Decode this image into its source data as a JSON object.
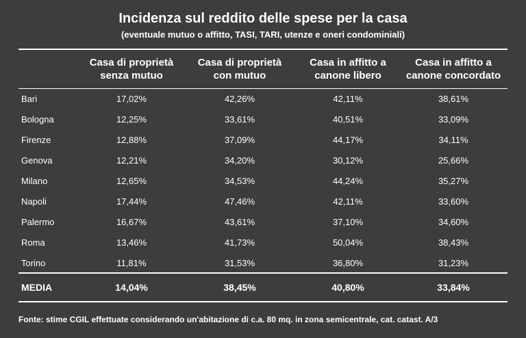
{
  "chart_data": {
    "type": "table",
    "title": "Incidenza sul reddito delle spese per la casa",
    "subtitle": "(eventuale mutuo o affitto, TASI, TARI, utenze e oneri condominiali)",
    "columns": [
      {
        "line1": "Casa di proprietà",
        "line2": "senza mutuo"
      },
      {
        "line1": "Casa di proprietà",
        "line2": "con mutuo"
      },
      {
        "line1": "Casa in affitto a",
        "line2": "canone libero"
      },
      {
        "line1": "Casa in affitto a",
        "line2": "canone concordato"
      }
    ],
    "rows": [
      {
        "city": "Bari",
        "values": [
          "17,02%",
          "42,26%",
          "42,11%",
          "38,61%"
        ]
      },
      {
        "city": "Bologna",
        "values": [
          "12,25%",
          "33,61%",
          "40,51%",
          "33,09%"
        ]
      },
      {
        "city": "Firenze",
        "values": [
          "12,88%",
          "37,09%",
          "44,17%",
          "34,11%"
        ]
      },
      {
        "city": "Genova",
        "values": [
          "12,21%",
          "34,20%",
          "30,12%",
          "25,66%"
        ]
      },
      {
        "city": "Milano",
        "values": [
          "12,65%",
          "34,53%",
          "44,24%",
          "35,27%"
        ]
      },
      {
        "city": "Napoli",
        "values": [
          "17,44%",
          "47,46%",
          "42,11%",
          "33,60%"
        ]
      },
      {
        "city": "Palermo",
        "values": [
          "16,67%",
          "43,61%",
          "37,10%",
          "34,60%"
        ]
      },
      {
        "city": "Roma",
        "values": [
          "13,46%",
          "41,73%",
          "50,04%",
          "38,43%"
        ]
      },
      {
        "city": "Torino",
        "values": [
          "11,81%",
          "31,53%",
          "36,80%",
          "31,23%"
        ]
      }
    ],
    "media": {
      "label": "MEDIA",
      "values": [
        "14,04%",
        "38,45%",
        "40,80%",
        "33,84%"
      ]
    },
    "footer": "Fonte: stime CGIL  effettuate considerando un'abitazione di c.a. 80 mq.  in zona semicentrale, cat. catast. A/3",
    "colors": {
      "background": "#3d3d3d",
      "text": "#ffffff",
      "rules": "#ffffff"
    }
  }
}
